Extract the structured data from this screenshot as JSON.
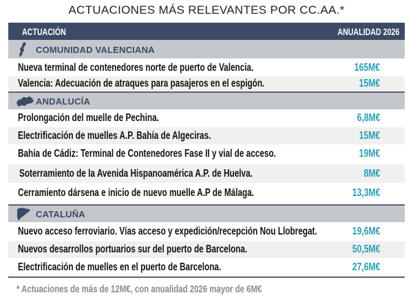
{
  "title": "ACTUACIONES MÁS RELEVANTES POR CC.AA.*",
  "header": {
    "col1": "ACTUACIÓN",
    "col2": "ANUALIDAD 2026"
  },
  "colors": {
    "header_bg": "#3d4a66",
    "section_bg": "#c4c8cc",
    "value": "#2a9db5"
  },
  "sections": [
    {
      "name": "COMUNIDAD VALENCIANA",
      "icon": "valencia-map-icon",
      "rows": [
        {
          "text": "Nueva terminal de contenedores norte de puerto de Valencia.",
          "value": "165M€"
        },
        {
          "text": "Valencia: Adecuación de atraques para pasajeros en el espigón.",
          "value": "15M€"
        }
      ]
    },
    {
      "name": "ANDALUCÍA",
      "icon": "andalucia-map-icon",
      "rows": [
        {
          "text": "Prolongación del muelle de Pechina.",
          "value": "6,8M€"
        },
        {
          "text": "Electrificación de muelles A.P. Bahía de Algeciras.",
          "value": "15M€"
        },
        {
          "text": "Bahía de Cádiz: Terminal de Contenedores Fase II y vial de acceso.",
          "value": "19M€"
        },
        {
          "text": "Soterramiento de la Avenida Hispanoamérica A.P. de Huelva.",
          "value": "8M€"
        },
        {
          "text": "Cerramiento dársena e inicio de nuevo muelle A.P de Málaga.",
          "value": "13,3M€"
        }
      ]
    },
    {
      "name": "CATALUÑA",
      "icon": "cataluna-map-icon",
      "rows": [
        {
          "text": "Nuevo acceso ferroviario. Vías acceso y expedición/recepción Nou Llobregat.",
          "value": "19,6M€"
        },
        {
          "text": "Nuevos desarrollos portuarios sur del puerto de Barcelona.",
          "value": "50,5M€"
        },
        {
          "text": "Electrificación de muelles en el puerto de Barcelona.",
          "value": "27,6M€"
        }
      ]
    }
  ],
  "footnote": "* Actuaciones de más de 12M€, con anualidad 2026 mayor de 6M€"
}
